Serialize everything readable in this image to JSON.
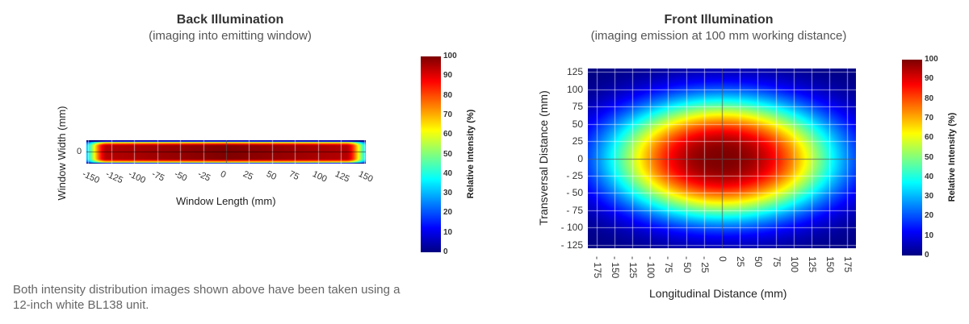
{
  "chart_data": [
    {
      "type": "heatmap",
      "title": "Back Illumination",
      "subtitle": "(imaging into emitting window)",
      "xlabel": "Window Length (mm)",
      "ylabel": "Window Width (mm)",
      "xticks": [
        "-150",
        "-125",
        "-100",
        "-75",
        "-50",
        "-25",
        "0",
        "25",
        "50",
        "75",
        "100",
        "125",
        "150"
      ],
      "yticks": [
        "0"
      ],
      "xlim": [
        -152,
        152
      ],
      "ylim": [
        -13,
        13
      ],
      "colorbar": {
        "label": "Relative Intensity (%)",
        "ticks": [
          "100",
          "90",
          "80",
          "70",
          "60",
          "50",
          "40",
          "30",
          "20",
          "10",
          "0"
        ],
        "range": [
          0,
          100
        ]
      },
      "colorscale": [
        "#00007f",
        "#0000ff",
        "#007fff",
        "#00ffff",
        "#7fff7f",
        "#ffff00",
        "#ff7f00",
        "#ff0000",
        "#7f0000"
      ],
      "description_values": {
        "peak": 100,
        "center_intensity": 95
      }
    },
    {
      "type": "heatmap",
      "title": "Front Illumination",
      "subtitle": "(imaging emission at 100 mm working distance)",
      "xlabel": "Longitudinal Distance (mm)",
      "ylabel": "Transversal Distance (mm)",
      "xticks": [
        "-175",
        "-150",
        "-125",
        "-100",
        "-75",
        "-50",
        "-25",
        "0",
        "25",
        "50",
        "75",
        "100",
        "125",
        "150",
        "175"
      ],
      "yticks": [
        "125",
        "100",
        "75",
        "50",
        "25",
        "0",
        "-25",
        "-50",
        "-75",
        "-100",
        "-125"
      ],
      "xlim": [
        -187,
        187
      ],
      "ylim": [
        -130,
        130
      ],
      "colorbar": {
        "label": "Relative Intensity (%)",
        "ticks": [
          "100",
          "90",
          "80",
          "70",
          "60",
          "50",
          "40",
          "30",
          "20",
          "10",
          "0"
        ],
        "range": [
          0,
          100
        ]
      },
      "colorscale": [
        "#00007f",
        "#0000ff",
        "#007fff",
        "#00ffff",
        "#7fff7f",
        "#ffff00",
        "#ff7f00",
        "#ff0000",
        "#7f0000"
      ]
    }
  ],
  "note": "Both intensity distribution images shown above have been taken using a 12-inch white BL138 unit."
}
